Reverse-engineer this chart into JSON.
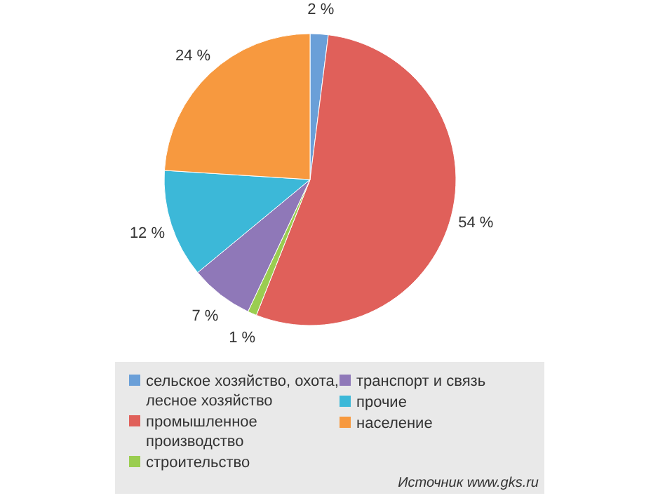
{
  "chart_data": {
    "type": "pie",
    "categories": [
      "сельское хозяйство, охота, лесное хозяйство",
      "промышленное производство",
      "строительство",
      "транспорт и связь",
      "прочие",
      "население"
    ],
    "values": [
      2,
      54,
      1,
      7,
      12,
      24
    ],
    "colors": [
      "#6a9fd8",
      "#e0605a",
      "#9acd50",
      "#8f78b8",
      "#3cb8d8",
      "#f7993f"
    ],
    "value_labels": [
      "2 %",
      "54 %",
      "1 %",
      "7 %",
      "12 %",
      "24 %"
    ],
    "legend": "bottom",
    "annotations": [
      "Источник www.gks.ru"
    ]
  }
}
